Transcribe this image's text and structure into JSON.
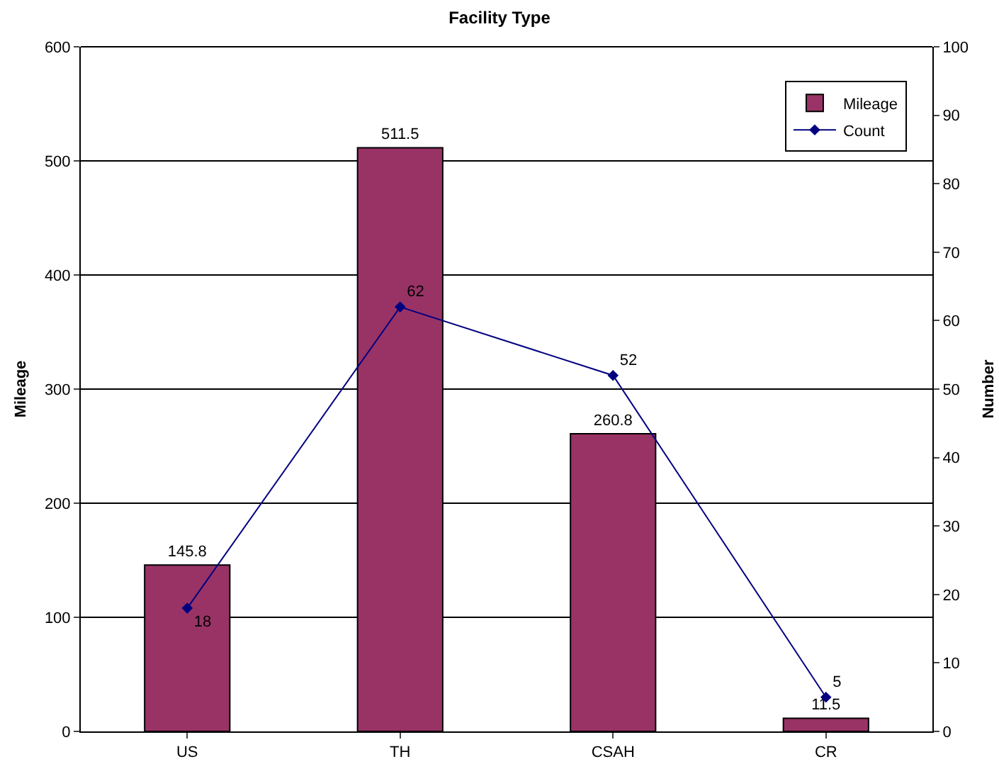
{
  "chart_data": {
    "type": "bar",
    "title": "Facility Type",
    "ylabel": "Mileage",
    "y2label": "Number",
    "categories": [
      "US",
      "TH",
      "CSAH",
      "CR"
    ],
    "series": [
      {
        "name": "Mileage",
        "color": "#993366",
        "values": [
          145.8,
          511.5,
          260.8,
          11.5
        ]
      },
      {
        "name": "Count",
        "type": "line",
        "axis": "y2",
        "color": "#000080",
        "values": [
          18,
          62,
          52,
          5
        ]
      }
    ],
    "ylim": [
      0,
      600
    ],
    "yticks": [
      0,
      100,
      200,
      300,
      400,
      500,
      600
    ],
    "y2lim": [
      0,
      100
    ],
    "y2ticks": [
      0,
      10,
      20,
      30,
      40,
      50,
      60,
      70,
      80,
      90,
      100
    ],
    "grid": "y",
    "legend": "top right",
    "marker": "diamond",
    "line_style": "solid",
    "data_labels": true
  }
}
